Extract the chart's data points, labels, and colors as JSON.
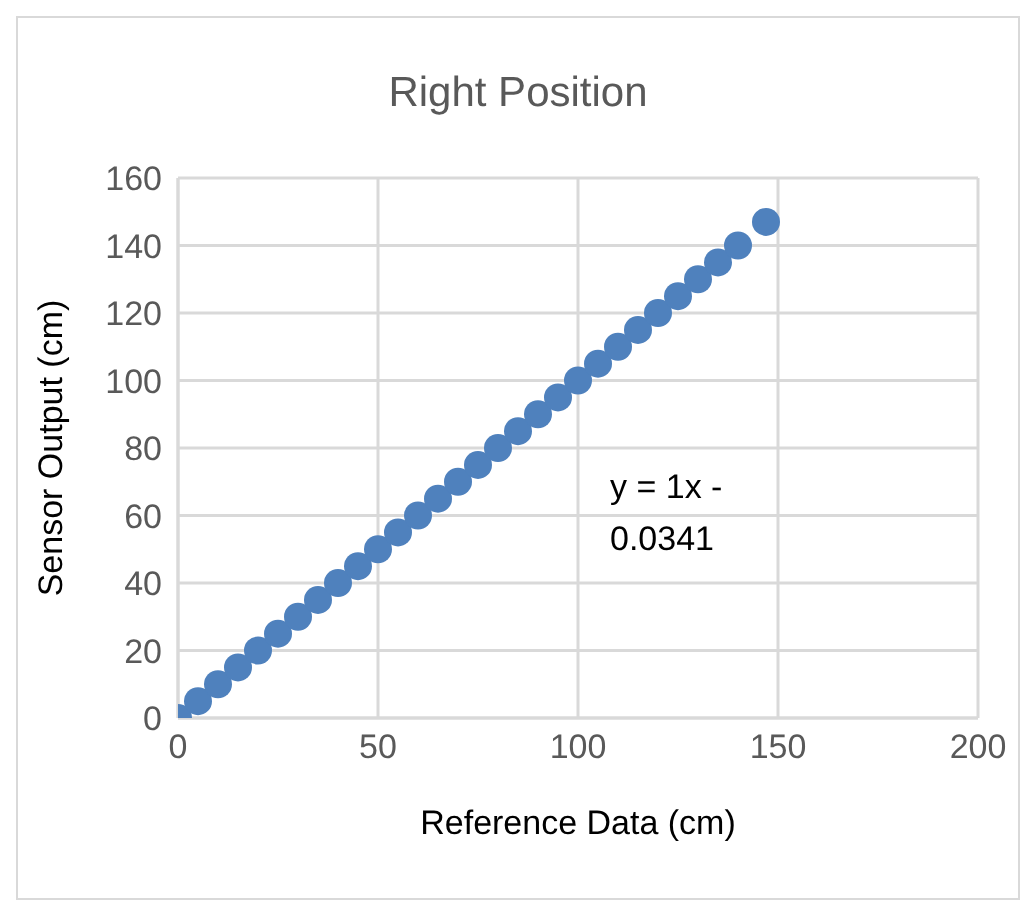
{
  "chart_data": {
    "type": "scatter",
    "title": "Right Position",
    "xlabel": "Reference Data (cm)",
    "ylabel": "Sensor Output (cm)",
    "x": [
      0,
      5,
      10,
      15,
      20,
      25,
      30,
      35,
      40,
      45,
      50,
      55,
      60,
      65,
      70,
      75,
      80,
      85,
      90,
      95,
      100,
      105,
      110,
      115,
      120,
      125,
      130,
      135,
      140,
      147
    ],
    "series": [
      {
        "color": "#4f81bd",
        "values": [
          0,
          5,
          10,
          15,
          20,
          25,
          30,
          35,
          40,
          45,
          50,
          55,
          60,
          65,
          70,
          75,
          80,
          85,
          90,
          95,
          100,
          105,
          110,
          115,
          120,
          125,
          130,
          135,
          140,
          147
        ]
      }
    ],
    "xlim": [
      0,
      200
    ],
    "xticks": [
      0,
      50,
      100,
      150,
      200
    ],
    "ylim": [
      0,
      160
    ],
    "yticks": [
      0,
      20,
      40,
      60,
      80,
      100,
      120,
      140,
      160
    ],
    "grid": true,
    "marker": "circle",
    "annotations": [
      "y = 1x - 0.0341"
    ]
  }
}
